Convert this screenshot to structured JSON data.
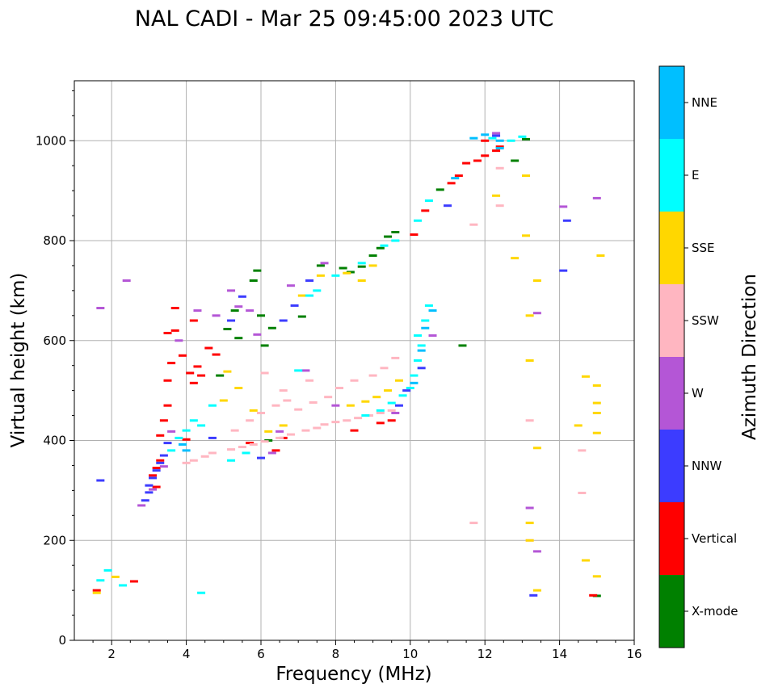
{
  "chart_data": {
    "type": "scatter",
    "title": "NAL CADI - Mar 25 09:45:00 2023 UTC",
    "xlabel": "Frequency (MHz)",
    "ylabel": "Virtual height (km)",
    "xlim": [
      1,
      16
    ],
    "ylim": [
      0,
      1120
    ],
    "xticks": [
      2,
      4,
      6,
      8,
      10,
      12,
      14,
      16
    ],
    "yticks": [
      0,
      200,
      400,
      600,
      800,
      1000
    ],
    "grid": true,
    "colorbar": {
      "label": "Azimuth Direction",
      "categories": [
        "X-mode",
        "Vertical",
        "NNW",
        "W",
        "SSW",
        "SSE",
        "E",
        "NNE"
      ],
      "colors": [
        "#008000",
        "#ff0000",
        "#3c3cff",
        "#b456d6",
        "#ffb6c1",
        "#ffd700",
        "#00ffff",
        "#00bfff"
      ]
    },
    "series": [
      {
        "name": "X-mode",
        "points": [
          [
            5.1,
            623
          ],
          [
            5.4,
            605
          ],
          [
            5.8,
            720
          ],
          [
            5.9,
            740
          ],
          [
            6.0,
            650
          ],
          [
            6.1,
            590
          ],
          [
            6.3,
            625
          ],
          [
            7.1,
            648
          ],
          [
            8.2,
            745
          ],
          [
            8.7,
            748
          ],
          [
            9.0,
            770
          ],
          [
            9.4,
            808
          ],
          [
            9.6,
            817
          ],
          [
            10.8,
            902
          ],
          [
            11.4,
            590
          ],
          [
            12.8,
            960
          ],
          [
            13.1,
            1003
          ],
          [
            15.0,
            89
          ],
          [
            4.9,
            530
          ],
          [
            6.2,
            400
          ],
          [
            5.3,
            660
          ],
          [
            7.6,
            750
          ],
          [
            8.4,
            737
          ],
          [
            9.2,
            785
          ]
        ]
      },
      {
        "name": "Vertical",
        "points": [
          [
            3.2,
            345
          ],
          [
            3.3,
            360
          ],
          [
            3.3,
            410
          ],
          [
            3.4,
            440
          ],
          [
            3.5,
            470
          ],
          [
            3.5,
            520
          ],
          [
            3.6,
            555
          ],
          [
            3.7,
            620
          ],
          [
            3.9,
            570
          ],
          [
            4.1,
            535
          ],
          [
            4.2,
            515
          ],
          [
            4.3,
            548
          ],
          [
            4.4,
            530
          ],
          [
            4.6,
            585
          ],
          [
            4.8,
            572
          ],
          [
            3.5,
            615
          ],
          [
            3.7,
            665
          ],
          [
            4.2,
            640
          ],
          [
            6.4,
            380
          ],
          [
            6.6,
            405
          ],
          [
            8.5,
            420
          ],
          [
            9.2,
            435
          ],
          [
            9.5,
            440
          ],
          [
            10.1,
            812
          ],
          [
            10.4,
            860
          ],
          [
            11.1,
            915
          ],
          [
            11.3,
            930
          ],
          [
            11.5,
            955
          ],
          [
            11.8,
            960
          ],
          [
            12.0,
            970
          ],
          [
            12.3,
            980
          ],
          [
            12.4,
            988
          ],
          [
            12.0,
            1000
          ],
          [
            14.9,
            90
          ],
          [
            4.0,
            402
          ],
          [
            3.1,
            330
          ],
          [
            3.2,
            307
          ],
          [
            5.7,
            395
          ],
          [
            2.6,
            118
          ],
          [
            1.6,
            100
          ]
        ]
      },
      {
        "name": "NNW",
        "points": [
          [
            2.9,
            280
          ],
          [
            3.0,
            296
          ],
          [
            3.0,
            310
          ],
          [
            3.1,
            325
          ],
          [
            3.2,
            340
          ],
          [
            3.3,
            355
          ],
          [
            3.4,
            370
          ],
          [
            4.7,
            405
          ],
          [
            5.2,
            640
          ],
          [
            6.0,
            365
          ],
          [
            6.6,
            640
          ],
          [
            6.9,
            670
          ],
          [
            7.3,
            720
          ],
          [
            9.7,
            470
          ],
          [
            9.9,
            500
          ],
          [
            10.3,
            545
          ],
          [
            11.0,
            870
          ],
          [
            12.3,
            1010
          ],
          [
            13.3,
            90
          ],
          [
            14.1,
            740
          ],
          [
            14.2,
            840
          ],
          [
            5.5,
            688
          ],
          [
            3.5,
            395
          ],
          [
            1.7,
            320
          ]
        ]
      },
      {
        "name": "W",
        "points": [
          [
            2.8,
            270
          ],
          [
            3.1,
            302
          ],
          [
            3.4,
            348
          ],
          [
            3.8,
            600
          ],
          [
            4.3,
            660
          ],
          [
            4.8,
            650
          ],
          [
            5.2,
            700
          ],
          [
            5.4,
            668
          ],
          [
            5.7,
            660
          ],
          [
            5.9,
            612
          ],
          [
            6.3,
            375
          ],
          [
            6.5,
            418
          ],
          [
            6.8,
            710
          ],
          [
            7.2,
            540
          ],
          [
            7.7,
            755
          ],
          [
            8.0,
            470
          ],
          [
            9.6,
            455
          ],
          [
            10.6,
            610
          ],
          [
            13.2,
            265
          ],
          [
            13.4,
            655
          ],
          [
            14.1,
            868
          ],
          [
            15.0,
            885
          ],
          [
            13.4,
            178
          ],
          [
            3.6,
            418
          ],
          [
            2.4,
            720
          ],
          [
            1.7,
            665
          ],
          [
            12.3,
            1015
          ]
        ]
      },
      {
        "name": "SSW",
        "points": [
          [
            4.0,
            355
          ],
          [
            4.2,
            360
          ],
          [
            4.5,
            368
          ],
          [
            4.7,
            375
          ],
          [
            5.2,
            382
          ],
          [
            5.5,
            387
          ],
          [
            5.8,
            392
          ],
          [
            6.1,
            398
          ],
          [
            6.5,
            405
          ],
          [
            6.8,
            412
          ],
          [
            7.2,
            420
          ],
          [
            7.5,
            425
          ],
          [
            7.7,
            432
          ],
          [
            8.0,
            437
          ],
          [
            8.3,
            440
          ],
          [
            8.6,
            445
          ],
          [
            8.9,
            450
          ],
          [
            9.2,
            455
          ],
          [
            9.5,
            460
          ],
          [
            5.3,
            420
          ],
          [
            5.7,
            440
          ],
          [
            6.0,
            455
          ],
          [
            6.4,
            470
          ],
          [
            6.7,
            480
          ],
          [
            7.0,
            462
          ],
          [
            7.4,
            476
          ],
          [
            7.8,
            487
          ],
          [
            8.1,
            505
          ],
          [
            8.5,
            520
          ],
          [
            9.0,
            530
          ],
          [
            9.3,
            545
          ],
          [
            9.6,
            565
          ],
          [
            6.1,
            535
          ],
          [
            6.6,
            500
          ],
          [
            7.3,
            520
          ],
          [
            12.4,
            870
          ],
          [
            12.4,
            945
          ],
          [
            13.2,
            200
          ],
          [
            13.2,
            440
          ],
          [
            14.6,
            380
          ],
          [
            14.6,
            295
          ],
          [
            11.7,
            832
          ],
          [
            11.7,
            235
          ]
        ]
      },
      {
        "name": "SSE",
        "points": [
          [
            5.0,
            480
          ],
          [
            5.4,
            505
          ],
          [
            5.8,
            460
          ],
          [
            6.2,
            418
          ],
          [
            6.6,
            430
          ],
          [
            7.1,
            690
          ],
          [
            7.6,
            730
          ],
          [
            8.3,
            735
          ],
          [
            8.7,
            720
          ],
          [
            9.0,
            750
          ],
          [
            8.4,
            470
          ],
          [
            8.8,
            478
          ],
          [
            9.1,
            487
          ],
          [
            9.4,
            500
          ],
          [
            9.7,
            520
          ],
          [
            12.3,
            890
          ],
          [
            12.8,
            765
          ],
          [
            13.1,
            930
          ],
          [
            13.1,
            810
          ],
          [
            13.2,
            650
          ],
          [
            13.2,
            560
          ],
          [
            13.2,
            235
          ],
          [
            13.2,
            200
          ],
          [
            13.4,
            720
          ],
          [
            13.4,
            385
          ],
          [
            13.4,
            100
          ],
          [
            14.5,
            430
          ],
          [
            14.7,
            528
          ],
          [
            14.7,
            160
          ],
          [
            15.0,
            510
          ],
          [
            15.0,
            475
          ],
          [
            15.0,
            455
          ],
          [
            15.0,
            415
          ],
          [
            15.0,
            128
          ],
          [
            15.1,
            770
          ],
          [
            5.1,
            538
          ],
          [
            1.6,
            95
          ],
          [
            2.1,
            127
          ]
        ]
      },
      {
        "name": "E",
        "points": [
          [
            3.6,
            380
          ],
          [
            3.8,
            405
          ],
          [
            4.0,
            420
          ],
          [
            4.2,
            440
          ],
          [
            4.4,
            430
          ],
          [
            4.7,
            470
          ],
          [
            5.2,
            360
          ],
          [
            5.6,
            375
          ],
          [
            7.0,
            540
          ],
          [
            7.3,
            690
          ],
          [
            7.5,
            700
          ],
          [
            8.0,
            730
          ],
          [
            8.7,
            755
          ],
          [
            9.3,
            790
          ],
          [
            9.6,
            800
          ],
          [
            8.8,
            450
          ],
          [
            9.2,
            460
          ],
          [
            9.5,
            475
          ],
          [
            9.8,
            490
          ],
          [
            10.0,
            505
          ],
          [
            10.1,
            530
          ],
          [
            10.2,
            560
          ],
          [
            10.3,
            590
          ],
          [
            10.2,
            610
          ],
          [
            10.4,
            640
          ],
          [
            10.5,
            670
          ],
          [
            10.2,
            840
          ],
          [
            10.5,
            880
          ],
          [
            12.2,
            1005
          ],
          [
            12.7,
            1000
          ],
          [
            13.0,
            1008
          ],
          [
            1.7,
            120
          ],
          [
            1.9,
            140
          ],
          [
            4.4,
            95
          ],
          [
            2.3,
            110
          ]
        ]
      },
      {
        "name": "NNE",
        "points": [
          [
            3.9,
            392
          ],
          [
            4.0,
            380
          ],
          [
            10.1,
            515
          ],
          [
            10.3,
            580
          ],
          [
            10.4,
            625
          ],
          [
            10.6,
            660
          ],
          [
            11.2,
            925
          ],
          [
            11.7,
            1005
          ],
          [
            12.0,
            1012
          ],
          [
            12.4,
            1000
          ],
          [
            12.4,
            985
          ]
        ]
      }
    ]
  }
}
